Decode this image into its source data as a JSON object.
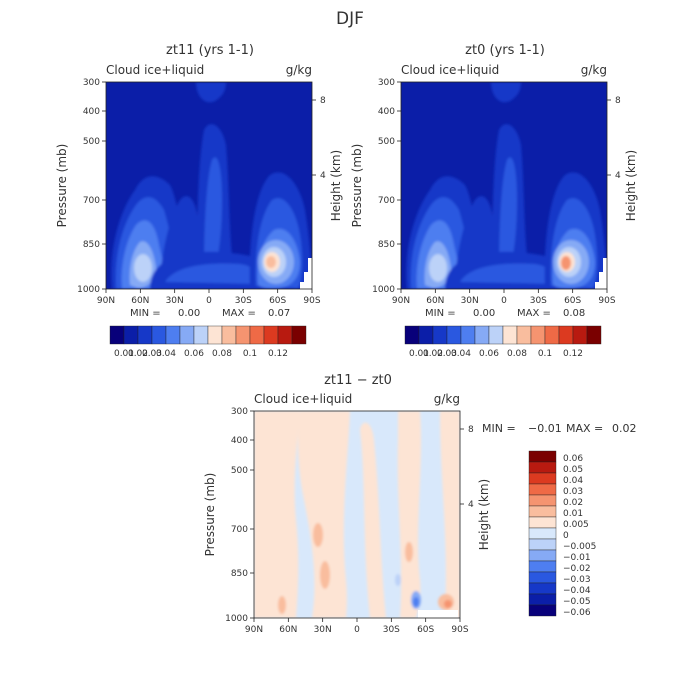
{
  "figure_title": "DJF",
  "colors": {
    "scale_12": [
      "#08007a",
      "#0b1ea8",
      "#1638c8",
      "#2a58e0",
      "#4e7ef0",
      "#86aaf5",
      "#bcd2f8",
      "#fde4d4",
      "#f9bd9e",
      "#f59470",
      "#ef6a46",
      "#dc3a20",
      "#b81a10",
      "#7a0000"
    ],
    "diff_scale": [
      "#08007a",
      "#0b1ea8",
      "#1638c8",
      "#2a58e0",
      "#4e7ef0",
      "#86aaf5",
      "#bcd2f8",
      "#d8e8fb",
      "#fde4d4",
      "#f9bd9e",
      "#f59470",
      "#ef6a46",
      "#dc3a20",
      "#b81a10",
      "#7a0000"
    ],
    "background_field": "#0b1ea8",
    "diff_background": "#d8e8fb"
  },
  "chart_data": [
    {
      "type": "heatmap",
      "title": "zt11 (yrs 1-1)",
      "subtitle_left": "Cloud ice+liquid",
      "subtitle_right": "g/kg",
      "ylabel": "Pressure (mb)",
      "ylabel_right": "Height (km)",
      "x_ticks": [
        "90N",
        "60N",
        "30N",
        "0",
        "30S",
        "60S",
        "90S"
      ],
      "y_ticks": [
        "300",
        "400",
        "500",
        "700",
        "850",
        "1000"
      ],
      "y_right_ticks": [
        "8",
        "4"
      ],
      "min_max_text": {
        "min_label": "MIN =",
        "min": "0.00",
        "max_label": "MAX =",
        "max": "0.07"
      },
      "colorbar_labels": [
        "0.01",
        "0.02",
        "0.03",
        "0.04",
        "0.06",
        "0.08",
        "0.1",
        "0.12"
      ],
      "features": [
        {
          "lat": 62,
          "p": 900,
          "value": 0.05
        },
        {
          "lat": 40,
          "p": 870,
          "value": 0.03
        },
        {
          "lat": 5,
          "p": 580,
          "value": 0.02
        },
        {
          "lat": -55,
          "p": 900,
          "value": 0.07
        },
        {
          "lat": -58,
          "p": 700,
          "value": 0.03
        }
      ]
    },
    {
      "type": "heatmap",
      "title": "zt0 (yrs 1-1)",
      "subtitle_left": "Cloud ice+liquid",
      "subtitle_right": "g/kg",
      "ylabel": "Pressure (mb)",
      "ylabel_right": "Height (km)",
      "x_ticks": [
        "90N",
        "60N",
        "30N",
        "0",
        "30S",
        "60S",
        "90S"
      ],
      "y_ticks": [
        "300",
        "400",
        "500",
        "700",
        "850",
        "1000"
      ],
      "y_right_ticks": [
        "8",
        "4"
      ],
      "min_max_text": {
        "min_label": "MIN =",
        "min": "0.00",
        "max_label": "MAX =",
        "max": "0.08"
      },
      "colorbar_labels": [
        "0.01",
        "0.02",
        "0.03",
        "0.04",
        "0.06",
        "0.08",
        "0.1",
        "0.12"
      ],
      "features": [
        {
          "lat": 62,
          "p": 900,
          "value": 0.05
        },
        {
          "lat": 40,
          "p": 870,
          "value": 0.03
        },
        {
          "lat": 5,
          "p": 580,
          "value": 0.02
        },
        {
          "lat": -55,
          "p": 900,
          "value": 0.08
        },
        {
          "lat": -58,
          "p": 700,
          "value": 0.03
        }
      ]
    },
    {
      "type": "heatmap",
      "title": "zt11 − zt0",
      "subtitle_left": "Cloud ice+liquid",
      "subtitle_right": "g/kg",
      "ylabel": "Pressure (mb)",
      "ylabel_right": "Height (km)",
      "x_ticks": [
        "90N",
        "60N",
        "30N",
        "0",
        "30S",
        "60S",
        "90S"
      ],
      "y_ticks": [
        "300",
        "400",
        "500",
        "700",
        "850",
        "1000"
      ],
      "y_right_ticks": [
        "8",
        "4"
      ],
      "min_max_text": {
        "min_label": "MIN =",
        "min": "−0.01",
        "max_label": "MAX =",
        "max": "0.02"
      },
      "colorbar_labels": [
        "0.06",
        "0.05",
        "0.04",
        "0.03",
        "0.02",
        "0.01",
        "0.005",
        "0",
        "−0.005",
        "−0.01",
        "−0.02",
        "−0.03",
        "−0.04",
        "−0.05",
        "−0.06"
      ],
      "features": [
        {
          "lat": 75,
          "p": 800,
          "value": 0.005
        },
        {
          "lat": 30,
          "p": 760,
          "value": 0.01
        },
        {
          "lat": -35,
          "p": 700,
          "value": 0.01
        },
        {
          "lat": -57,
          "p": 950,
          "value": -0.01
        },
        {
          "lat": -75,
          "p": 980,
          "value": 0.02
        }
      ]
    }
  ]
}
